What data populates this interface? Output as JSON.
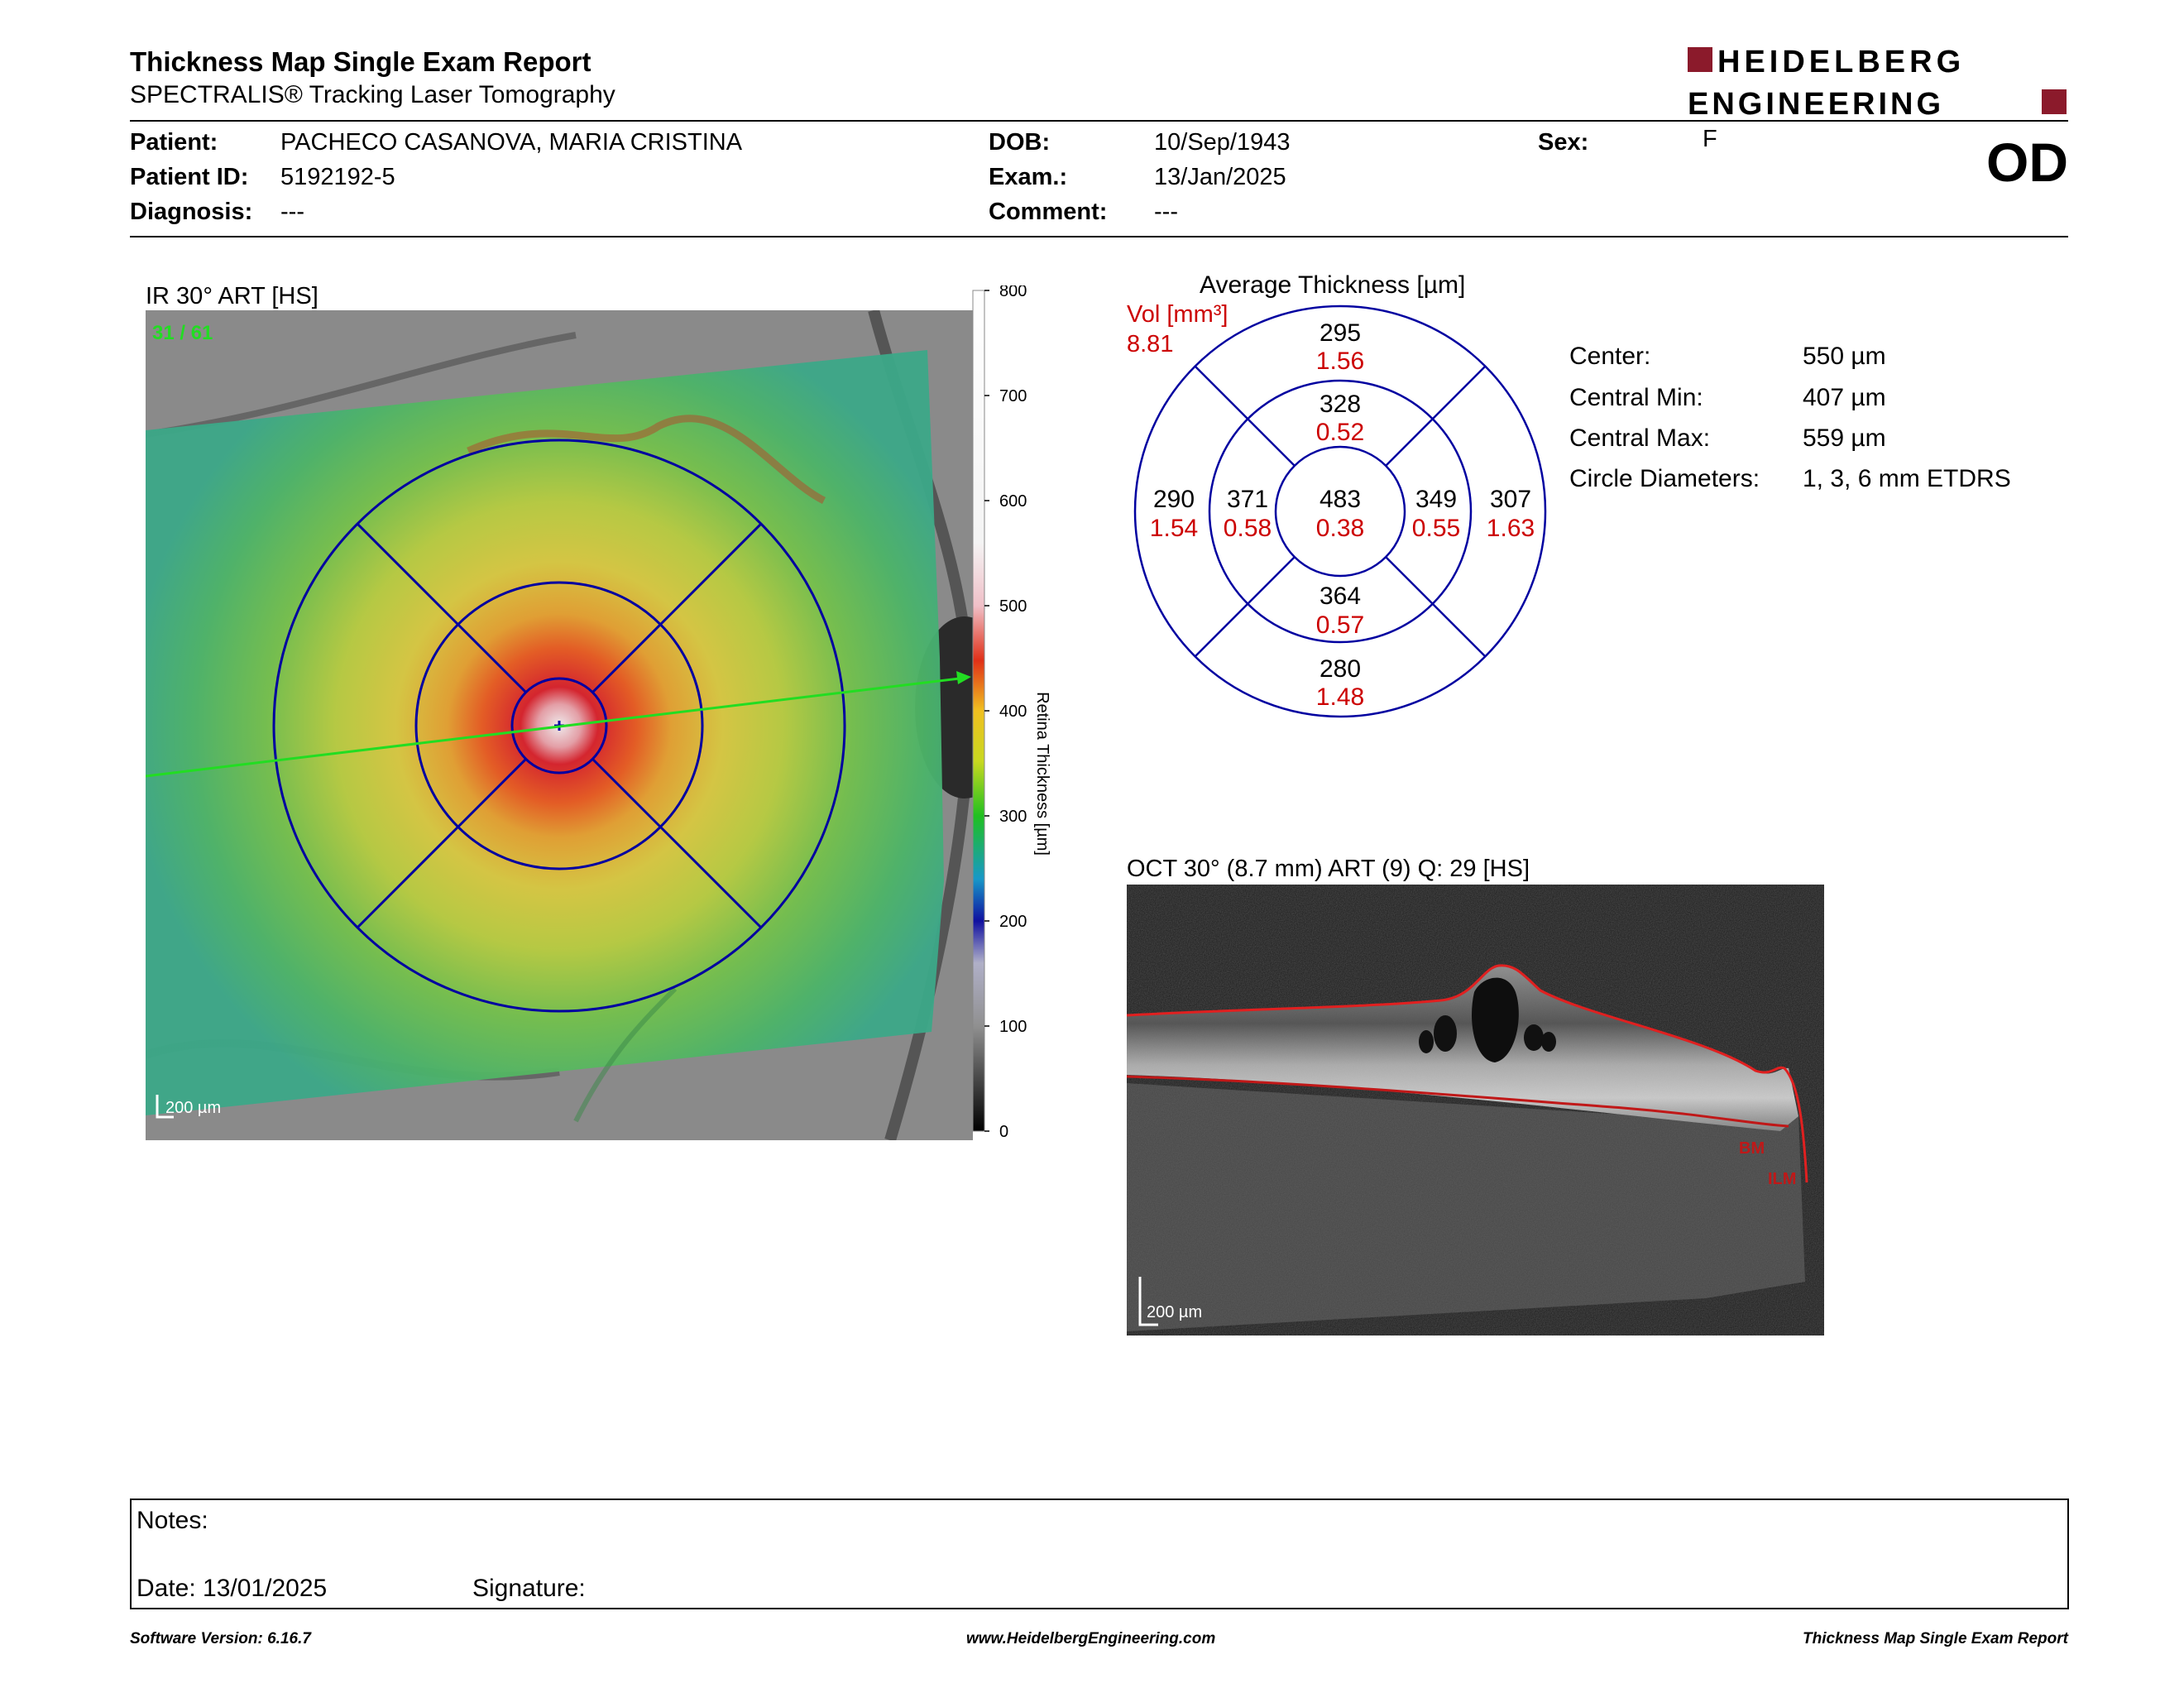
{
  "header": {
    "title": "Thickness Map Single Exam Report",
    "subtitle": "SPECTRALIS® Tracking Laser Tomography",
    "logo_line1": "HEIDELBERG",
    "logo_line2": "ENGINEERING",
    "eye": "OD"
  },
  "patient": {
    "patient_label": "Patient:",
    "patient_value": "PACHECO CASANOVA, MARIA CRISTINA",
    "id_label": "Patient ID:",
    "id_value": "5192192-5",
    "diagnosis_label": "Diagnosis:",
    "diagnosis_value": "---",
    "dob_label": "DOB:",
    "dob_value": "10/Sep/1943",
    "exam_label": "Exam.:",
    "exam_value": "13/Jan/2025",
    "comment_label": "Comment:",
    "comment_value": "---",
    "sex_label": "Sex:",
    "sex_value": "F"
  },
  "ir_image": {
    "label": "IR 30° ART [HS]",
    "frame": "31 / 61",
    "scale": "200 µm",
    "colorbar_ticks": [
      "800",
      "700",
      "600",
      "500",
      "400",
      "300",
      "200",
      "100",
      "0"
    ],
    "colorbar_title": "Retina Thickness [µm]"
  },
  "etdrs": {
    "title": "Average Thickness [µm]",
    "vol_label": "Vol [mm³]",
    "vol_total": "8.81",
    "center": {
      "thick": "483",
      "vol": "0.38"
    },
    "inner_superior": {
      "thick": "328",
      "vol": "0.52"
    },
    "inner_nasal": {
      "thick": "371",
      "vol": "0.58"
    },
    "inner_temporal": {
      "thick": "349",
      "vol": "0.55"
    },
    "inner_inferior": {
      "thick": "364",
      "vol": "0.57"
    },
    "outer_superior": {
      "thick": "295",
      "vol": "1.56"
    },
    "outer_nasal": {
      "thick": "290",
      "vol": "1.54"
    },
    "outer_temporal": {
      "thick": "307",
      "vol": "1.63"
    },
    "outer_inferior": {
      "thick": "280",
      "vol": "1.48"
    }
  },
  "stats": [
    {
      "label": "Center:",
      "value": "550 µm"
    },
    {
      "label": "Central Min:",
      "value": "407 µm"
    },
    {
      "label": "Central Max:",
      "value": "559 µm"
    },
    {
      "label": "Circle Diameters:",
      "value": "1, 3, 6 mm ETDRS"
    }
  ],
  "oct_image": {
    "label": "OCT 30° (8.7 mm) ART (9) Q: 29 [HS]",
    "bm": "BM",
    "ilm": "ILM",
    "scale": "200 µm"
  },
  "notes": {
    "notes_label": "Notes:",
    "date_label": "Date: 13/01/2025",
    "signature_label": "Signature:"
  },
  "footer": {
    "software": "Software Version: 6.16.7",
    "website": "www.HeidelbergEngineering.com",
    "report": "Thickness Map Single Exam Report"
  },
  "colors": {
    "brand": "#8b1a2b",
    "etdrs_blue": "#0000a0",
    "volume_red": "#cc0000",
    "scan_green": "#22dd22"
  }
}
